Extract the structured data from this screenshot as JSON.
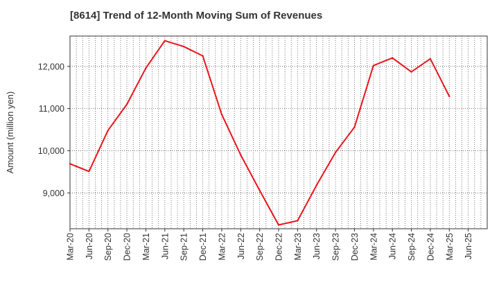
{
  "title": "[8614]  Trend of 12-Month Moving Sum of Revenues",
  "chart_data": {
    "type": "line",
    "title": "[8614]  Trend of 12-Month Moving Sum of Revenues",
    "xlabel": "",
    "ylabel": "Amount (million yen)",
    "x_tick_labels": [
      "Mar-20",
      "Jun-20",
      "Sep-20",
      "Dec-20",
      "Mar-21",
      "Jun-21",
      "Sep-21",
      "Dec-21",
      "Mar-22",
      "Jun-22",
      "Sep-22",
      "Dec-22",
      "Mar-23",
      "Jun-23",
      "Sep-23",
      "Dec-23",
      "Mar-24",
      "Jun-24",
      "Sep-24",
      "Dec-24",
      "Mar-25",
      "Jun-25"
    ],
    "y_ticks": [
      9000,
      10000,
      11000,
      12000
    ],
    "y_tick_labels": [
      "9,000",
      "10,000",
      "11,000",
      "12,000"
    ],
    "ylim": [
      8150,
      12720
    ],
    "grid": true,
    "line_color": "#e8141b",
    "series": [
      {
        "x": [
          "Mar-20",
          "Jun-20",
          "Sep-20",
          "Dec-20",
          "Mar-21",
          "Jun-21",
          "Sep-21",
          "Dec-21",
          "Mar-22",
          "Jun-22",
          "Sep-22",
          "Dec-22",
          "Mar-23",
          "Jun-23",
          "Sep-23",
          "Dec-23",
          "Mar-24",
          "Jun-24",
          "Sep-24",
          "Dec-24",
          "Mar-25"
        ],
        "values": [
          9690,
          9510,
          10480,
          11100,
          11960,
          12610,
          12470,
          12250,
          10860,
          9900,
          9060,
          8240,
          8340,
          9180,
          9960,
          10560,
          12020,
          12200,
          11870,
          12180,
          11290
        ]
      }
    ]
  }
}
